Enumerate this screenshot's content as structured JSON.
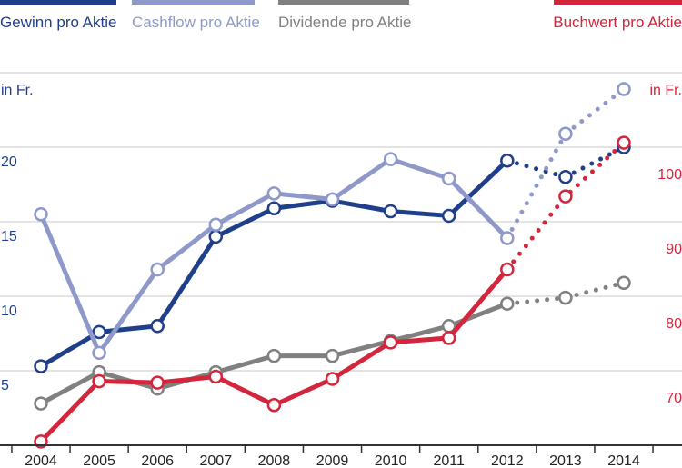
{
  "chart_data": {
    "type": "line",
    "categories": [
      "2004",
      "2005",
      "2006",
      "2007",
      "2008",
      "2009",
      "2010",
      "2011",
      "2012",
      "2013",
      "2014"
    ],
    "y_left": {
      "unit": "in Fr.",
      "ticks": [
        5,
        10,
        15,
        20
      ],
      "range": [
        0,
        25
      ]
    },
    "y_right": {
      "unit": "in Fr.",
      "ticks": [
        70,
        80,
        90,
        100
      ],
      "range": [
        64,
        114
      ]
    },
    "forecast_from_index": 8,
    "series": [
      {
        "name": "Gewinn pro Aktie",
        "axis": "left",
        "color": "#1f3f8a",
        "values": [
          5.3,
          7.6,
          8.0,
          14.0,
          15.9,
          16.4,
          15.7,
          15.4,
          19.1,
          18.0,
          20.0
        ]
      },
      {
        "name": "Cashflow pro Aktie",
        "axis": "left",
        "color": "#8e99c9",
        "values": [
          15.5,
          6.2,
          11.8,
          14.8,
          16.9,
          16.5,
          19.2,
          17.9,
          13.9,
          20.9,
          23.9
        ]
      },
      {
        "name": "Dividende pro Aktie",
        "axis": "left",
        "color": "#808080",
        "values": [
          2.8,
          4.9,
          3.8,
          4.9,
          6.0,
          6.0,
          7.0,
          8.0,
          9.5,
          9.9,
          10.9
        ]
      },
      {
        "name": "Buchwert pro Aktie",
        "axis": "right",
        "color": "#d3263c",
        "values": [
          64.5,
          72.6,
          72.4,
          73.2,
          69.4,
          72.9,
          77.8,
          78.4,
          87.6,
          97.4,
          104.6
        ]
      }
    ]
  }
}
